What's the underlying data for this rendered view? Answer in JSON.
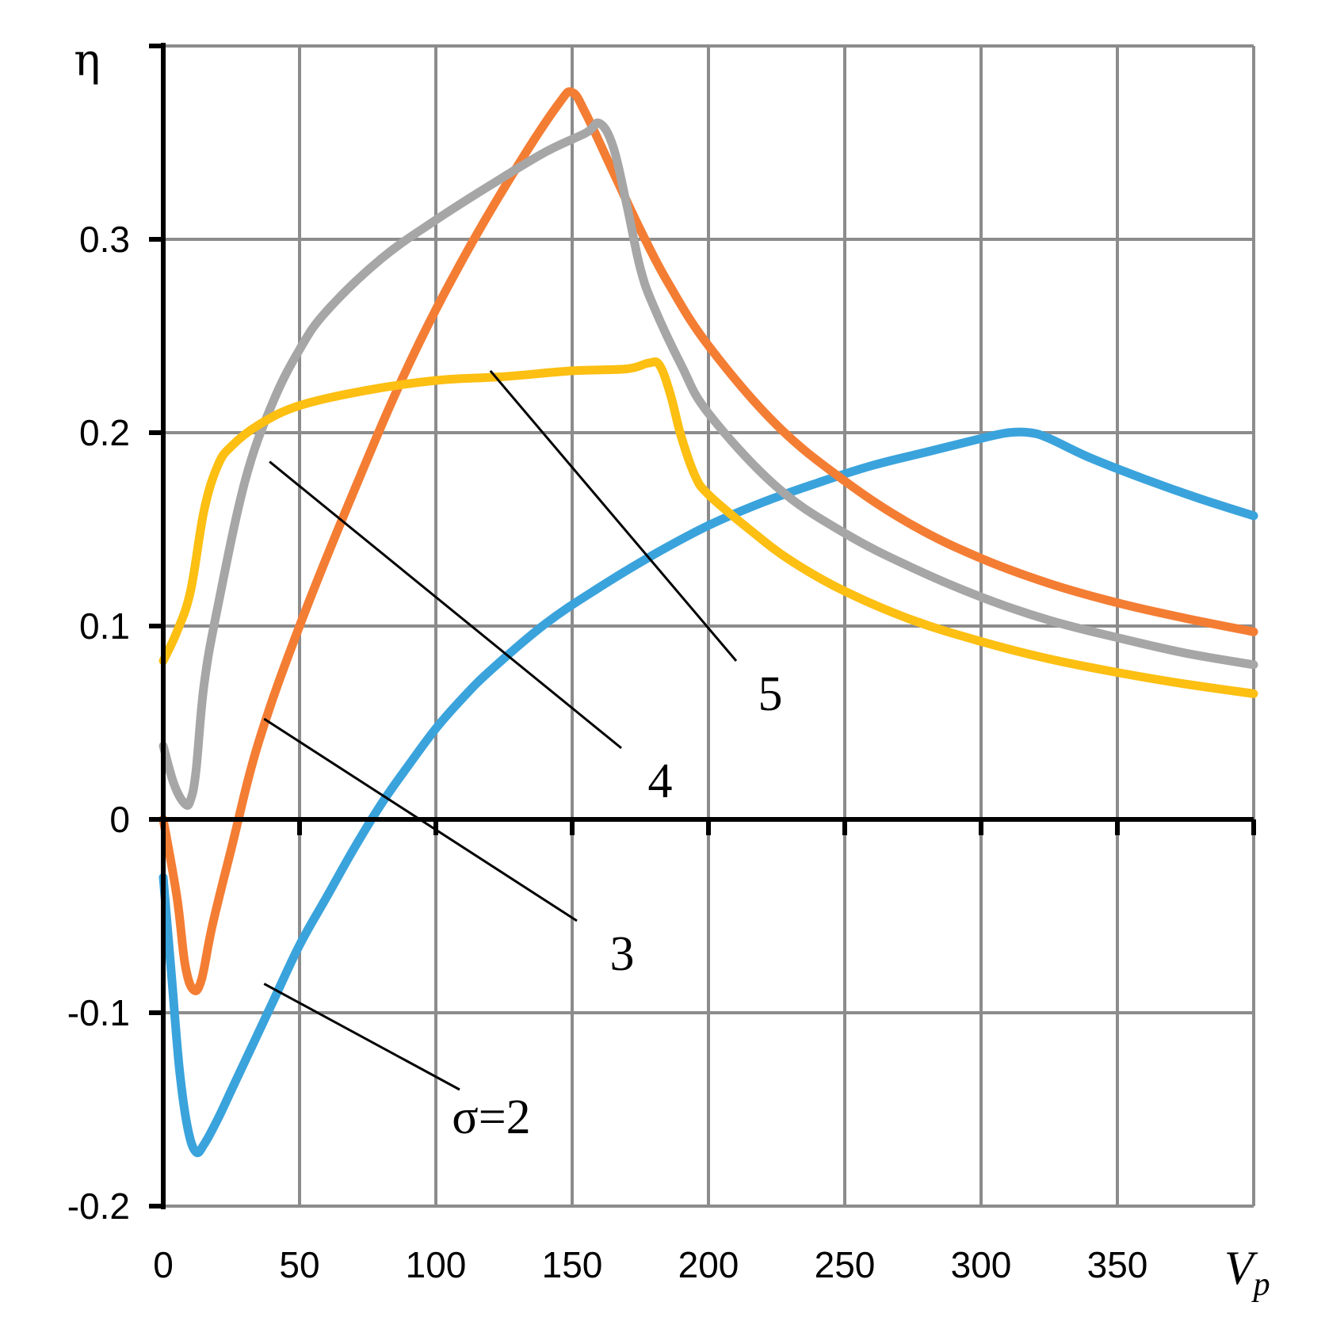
{
  "chart_data": {
    "type": "line",
    "title": "",
    "xlabel": "V",
    "xlabel_subscript": "p",
    "ylabel": "η",
    "xlim": [
      0,
      400
    ],
    "ylim": [
      -0.2,
      0.4
    ],
    "grid": true,
    "x_ticks": [
      0,
      50,
      100,
      150,
      200,
      250,
      300,
      350
    ],
    "x_tick_labels": [
      "0",
      "50",
      "100",
      "150",
      "200",
      "250",
      "300",
      "350"
    ],
    "y_ticks": [
      -0.2,
      -0.1,
      0,
      0.1,
      0.2,
      0.3
    ],
    "y_tick_labels": [
      "-0.2",
      "-0.1",
      "0",
      "0.1",
      "0.2",
      "0.3"
    ],
    "series": [
      {
        "name": "σ=2",
        "color": "#3aa3dc",
        "x": [
          0,
          3,
          6,
          9,
          12,
          15,
          20,
          25,
          30,
          40,
          50,
          60,
          70,
          80,
          90,
          100,
          110,
          120,
          140,
          160,
          180,
          200,
          220,
          240,
          260,
          280,
          300,
          310,
          318,
          325,
          340,
          360,
          380,
          400
        ],
        "y": [
          -0.03,
          -0.08,
          -0.13,
          -0.16,
          -0.172,
          -0.168,
          -0.155,
          -0.14,
          -0.125,
          -0.095,
          -0.065,
          -0.04,
          -0.015,
          0.008,
          0.028,
          0.047,
          0.063,
          0.077,
          0.101,
          0.12,
          0.137,
          0.152,
          0.164,
          0.174,
          0.183,
          0.19,
          0.197,
          0.2,
          0.2,
          0.197,
          0.187,
          0.176,
          0.166,
          0.157
        ]
      },
      {
        "name": "3",
        "color": "#f47d34",
        "x": [
          0,
          5,
          8,
          11,
          14,
          18,
          25,
          35,
          50,
          70,
          90,
          110,
          130,
          145,
          150,
          155,
          165,
          175,
          185,
          200,
          225,
          250,
          275,
          300,
          325,
          350,
          375,
          400
        ],
        "y": [
          0,
          -0.04,
          -0.075,
          -0.088,
          -0.083,
          -0.055,
          -0.015,
          0.04,
          0.1,
          0.17,
          0.235,
          0.29,
          0.338,
          0.37,
          0.376,
          0.365,
          0.335,
          0.305,
          0.278,
          0.245,
          0.204,
          0.175,
          0.152,
          0.135,
          0.122,
          0.112,
          0.104,
          0.097
        ]
      },
      {
        "name": "4",
        "color": "#a6a6a6",
        "x": [
          0,
          4,
          8,
          10,
          12,
          15,
          20,
          30,
          40,
          50,
          60,
          80,
          100,
          120,
          140,
          155,
          160,
          165,
          170,
          175,
          180,
          190,
          200,
          225,
          250,
          275,
          300,
          325,
          350,
          375,
          400
        ],
        "y": [
          0.038,
          0.018,
          0.008,
          0.01,
          0.025,
          0.07,
          0.11,
          0.175,
          0.215,
          0.243,
          0.263,
          0.29,
          0.31,
          0.328,
          0.345,
          0.355,
          0.36,
          0.348,
          0.318,
          0.285,
          0.265,
          0.235,
          0.21,
          0.172,
          0.148,
          0.13,
          0.115,
          0.103,
          0.094,
          0.086,
          0.08
        ]
      },
      {
        "name": "5",
        "color": "#fcbf12",
        "x": [
          0,
          5,
          10,
          15,
          20,
          25,
          35,
          50,
          75,
          100,
          125,
          150,
          170,
          178,
          182,
          186,
          190,
          195,
          200,
          215,
          230,
          250,
          275,
          300,
          325,
          350,
          375,
          400
        ],
        "y": [
          0.082,
          0.097,
          0.118,
          0.16,
          0.183,
          0.193,
          0.204,
          0.214,
          0.222,
          0.227,
          0.229,
          0.232,
          0.233,
          0.236,
          0.235,
          0.22,
          0.198,
          0.178,
          0.168,
          0.15,
          0.134,
          0.118,
          0.103,
          0.092,
          0.083,
          0.076,
          0.07,
          0.065
        ]
      }
    ],
    "annotations": [
      {
        "text": "σ=2",
        "series": "σ=2",
        "point_x": 37,
        "point_y": -0.085
      },
      {
        "text": "3",
        "series": "3",
        "point_x": 37,
        "point_y": 0.052
      },
      {
        "text": "4",
        "series": "4",
        "point_x": 39,
        "point_y": 0.185
      },
      {
        "text": "5",
        "series": "5",
        "point_x": 120,
        "point_y": 0.232
      }
    ]
  }
}
